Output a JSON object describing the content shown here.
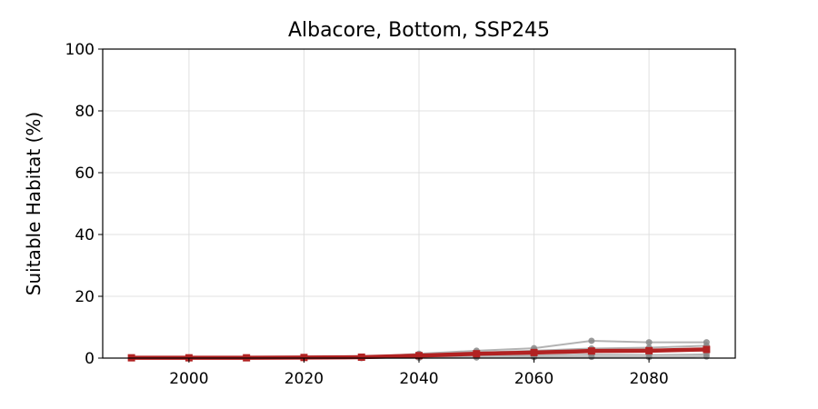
{
  "chart_data": {
    "type": "line",
    "title": "Albacore, Bottom, SSP245",
    "xlabel": "",
    "ylabel": "Suitable Habitat (%)",
    "xlim": [
      1985,
      2095
    ],
    "ylim": [
      0,
      100
    ],
    "xticks": [
      2000,
      2020,
      2040,
      2060,
      2080
    ],
    "yticks": [
      0,
      20,
      40,
      60,
      80,
      100
    ],
    "grid": true,
    "x": [
      1990,
      2000,
      2010,
      2020,
      2030,
      2040,
      2050,
      2060,
      2070,
      2080,
      2090
    ],
    "series": [
      {
        "role": "model",
        "color": "#999999",
        "values": [
          0.1,
          0.1,
          0.1,
          0.2,
          0.3,
          1.4,
          2.4,
          3.2,
          5.6,
          5.1,
          5.1
        ]
      },
      {
        "role": "model",
        "color": "#999999",
        "values": [
          0.1,
          0.1,
          0.1,
          0.2,
          0.3,
          1.0,
          1.8,
          2.4,
          3.1,
          3.4,
          4.0
        ]
      },
      {
        "role": "model",
        "color": "#999999",
        "values": [
          0.0,
          0.1,
          0.1,
          0.1,
          0.2,
          0.6,
          1.2,
          1.5,
          1.9,
          2.1,
          2.6
        ]
      },
      {
        "role": "model",
        "color": "#999999",
        "values": [
          0.0,
          0.0,
          0.0,
          0.1,
          0.1,
          0.4,
          0.8,
          0.9,
          1.1,
          1.0,
          1.2
        ]
      },
      {
        "role": "model",
        "color": "#999999",
        "values": [
          0.0,
          0.0,
          0.0,
          0.0,
          0.0,
          0.1,
          0.2,
          0.3,
          0.4,
          0.3,
          0.5
        ]
      },
      {
        "role": "mean",
        "color": "#b22222",
        "values": [
          0.1,
          0.1,
          0.1,
          0.2,
          0.3,
          0.8,
          1.4,
          1.8,
          2.3,
          2.4,
          2.8
        ]
      }
    ]
  }
}
